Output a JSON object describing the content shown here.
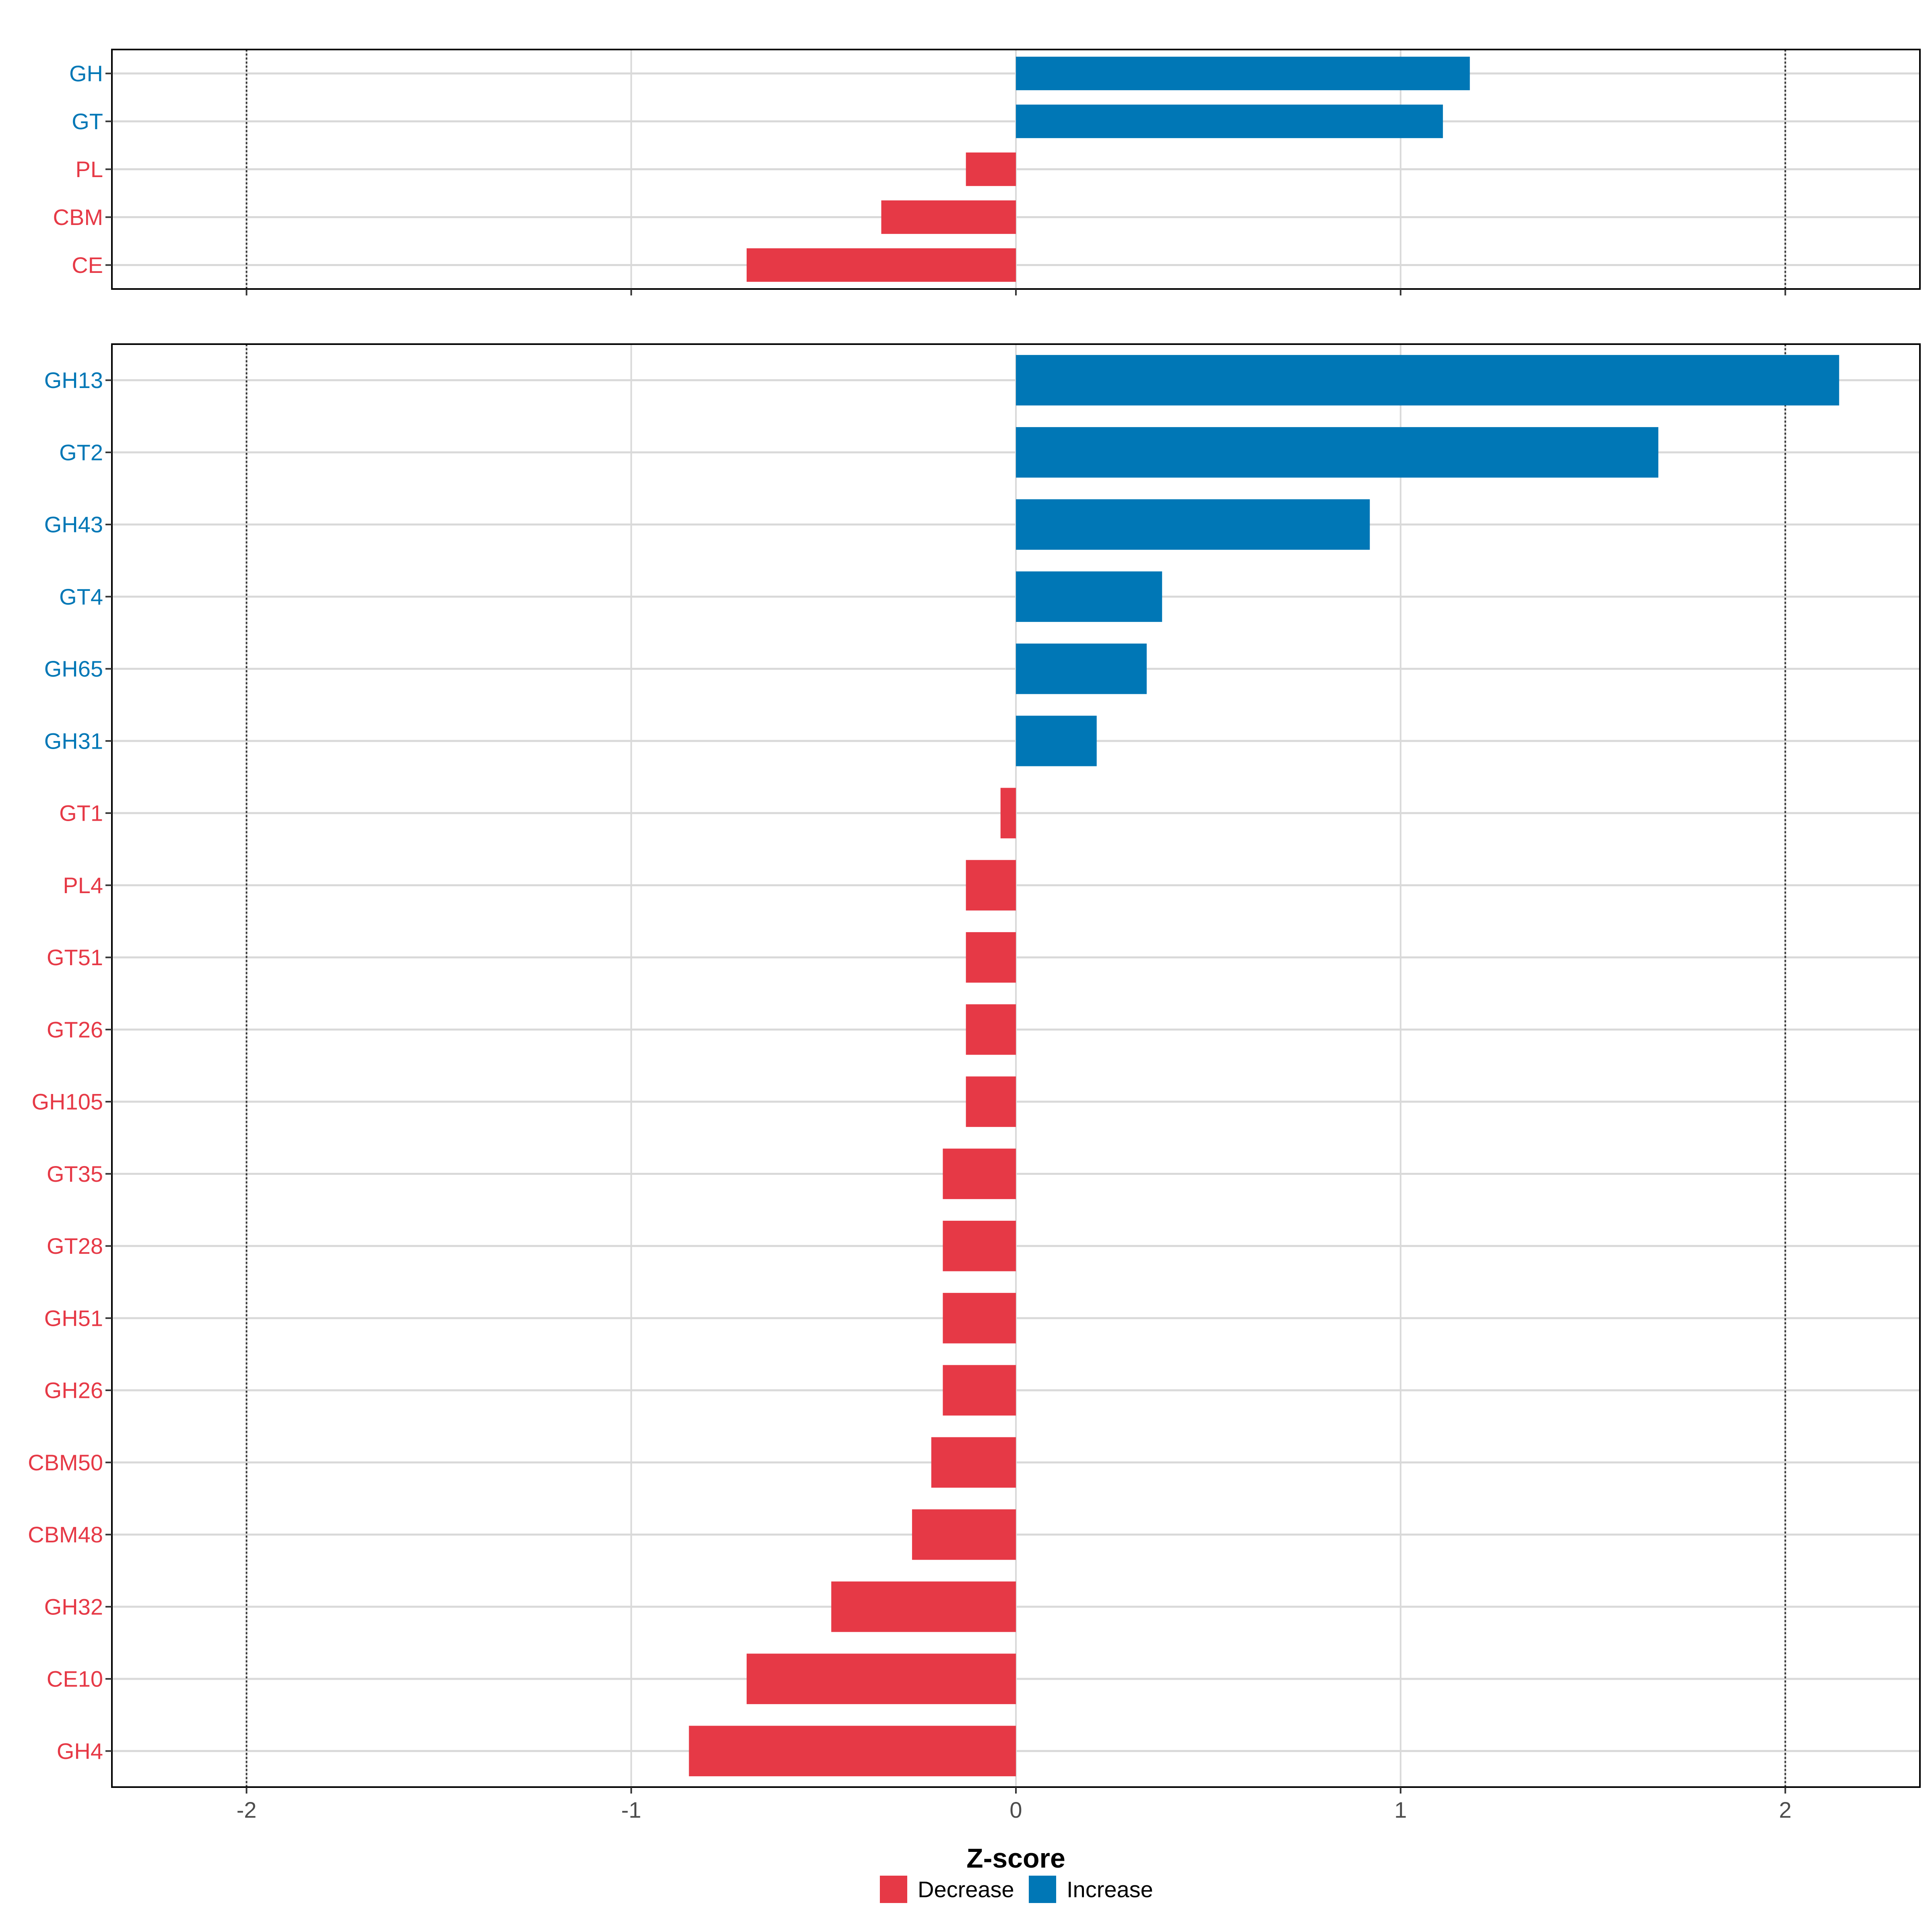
{
  "chart_data": {
    "type": "bar",
    "orientation": "horizontal",
    "xlabel": "Z-score",
    "ylabel": "",
    "xlim": [
      -2.35,
      2.35
    ],
    "x_ticks": [
      -2,
      -1,
      0,
      1,
      2
    ],
    "x_tick_labels": [
      "-2",
      "-1",
      "0",
      "1",
      "2"
    ],
    "reference_lines": [
      -2,
      2
    ],
    "grid": true,
    "legend_position": "bottom",
    "legend": [
      {
        "label": "Decrease",
        "color": "#E63946"
      },
      {
        "label": "Increase",
        "color": "#0077B6"
      }
    ],
    "colors": {
      "increase": "#0077B6",
      "decrease": "#E63946"
    },
    "panels": [
      {
        "name": "top",
        "categories": [
          "GH",
          "GT",
          "PL",
          "CBM",
          "CE"
        ],
        "values": [
          1.18,
          1.11,
          -0.13,
          -0.35,
          -0.7
        ]
      },
      {
        "name": "bottom",
        "categories": [
          "GH13",
          "GT2",
          "GH43",
          "GT4",
          "GH65",
          "GH31",
          "GT1",
          "PL4",
          "GT51",
          "GT26",
          "GH105",
          "GT35",
          "GT28",
          "GH51",
          "GH26",
          "CBM50",
          "CBM48",
          "GH32",
          "CE10",
          "GH4"
        ],
        "values": [
          2.14,
          1.67,
          0.92,
          0.38,
          0.34,
          0.21,
          -0.04,
          -0.13,
          -0.13,
          -0.13,
          -0.13,
          -0.19,
          -0.19,
          -0.19,
          -0.19,
          -0.22,
          -0.27,
          -0.48,
          -0.7,
          -0.85
        ]
      }
    ]
  }
}
